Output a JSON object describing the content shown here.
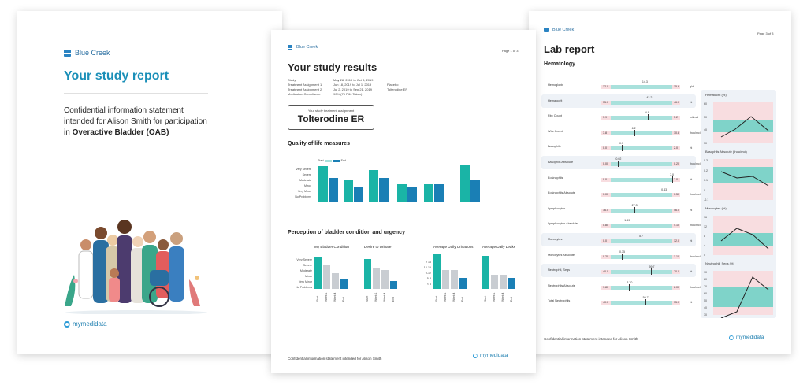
{
  "brand": {
    "name": "Blue Creek",
    "footer_brand": "mymedidata"
  },
  "colors": {
    "teal": "#1ab4a6",
    "blue": "#1a7fb5",
    "grey": "#c9cdd2",
    "normal_range": "#a9e1dc",
    "abnormal_range": "#f8dde0",
    "title_blue": "#1a8fb8"
  },
  "page1": {
    "title": "Your study report",
    "confidential_prefix": "Confidential information statement intended for Alison Smith for participation in",
    "confidential_bold": "Overactive Bladder (OAB)"
  },
  "page2": {
    "page_number": "Page 1 of 3",
    "title": "Your study results",
    "info": [
      {
        "label": "Study",
        "value": "May 28, 2019 to Oct 3, 2019",
        "extra": ""
      },
      {
        "label": "Treatment Assignment 1",
        "value": "Jun 18, 2019 to Jul 1, 2019",
        "extra": "Placebo"
      },
      {
        "label": "Treatment Assignment 2",
        "value": "Jul 2, 2019 to Sep 21, 2019",
        "extra": "Tolterodine ER"
      },
      {
        "label": "Medication Compliance",
        "value": "90% (75 Pills Taken)",
        "extra": ""
      }
    ],
    "assignment_caption": "Your study treatment assignment",
    "assignment_value": "Tolterodine ER",
    "qol": {
      "title": "Quality of life measures",
      "legend_start": "Start",
      "legend_end": "End",
      "levels": [
        "Very Severe",
        "Severe",
        "Moderate",
        "Minor",
        "Very Minor",
        "No Problems"
      ]
    },
    "perception": {
      "title": "Perception of bladder condition and urgency",
      "severity_levels": [
        "Very Severe",
        "Severe",
        "Moderate",
        "Minor",
        "Very Minor",
        "No Problems"
      ],
      "count_levels": [
        "≥ 15",
        "13-15",
        "9-12",
        "5-8",
        "< 5"
      ],
      "charts": [
        {
          "title": "My Bladder Condition",
          "weeks": [
            "Start",
            "Week 1",
            "Week 4",
            "End"
          ]
        },
        {
          "title": "Desire to Urinate",
          "weeks": [
            "Start",
            "Week 1",
            "Week 4",
            "End"
          ]
        },
        {
          "title": "Average Daily Urinations",
          "weeks": [
            "Start",
            "Week 1",
            "Week 4",
            "End"
          ]
        },
        {
          "title": "Average Daily Leaks",
          "weeks": [
            "Start",
            "Week 1",
            "Week 4",
            "End"
          ]
        }
      ]
    },
    "footer": "Confidential information statement intended for Alison Smith"
  },
  "page3": {
    "page_number": "Page 3 of 3",
    "title": "Lab report",
    "section": "Hematology",
    "rows": [
      {
        "name": "Hemoglobin",
        "low": "12.0",
        "high": "15.6",
        "value": "14.3",
        "unit": "g/dl"
      },
      {
        "name": "Hematocrit",
        "low": "35.0",
        "high": "46.0",
        "value": "42.2",
        "unit": "%"
      },
      {
        "name": "Rbc Count",
        "low": "3.9",
        "high": "5.2",
        "value": "4.9",
        "unit": "mil/mcl"
      },
      {
        "name": "Wbc Count",
        "low": "3.8",
        "high": "10.8",
        "value": "6.2",
        "unit": "thou/mcl"
      },
      {
        "name": "Basophils",
        "low": "0.0",
        "high": "2.0",
        "value": "0.3",
        "unit": "%"
      },
      {
        "name": "Basophils Absolute",
        "low": "0.00",
        "high": "0.20",
        "value": "0.02",
        "unit": "thou/mcl"
      },
      {
        "name": "Eosinophils",
        "low": "0.0",
        "high": "7.0",
        "value": "7.0",
        "unit": "%"
      },
      {
        "name": "Eosinophils Absolute",
        "low": "0.00",
        "high": "0.50",
        "value": "0.43",
        "unit": "thou/mcl"
      },
      {
        "name": "Lymphocytes",
        "low": "16.0",
        "high": "46.0",
        "value": "27.3",
        "unit": "%"
      },
      {
        "name": "Lymphocytes Absolute",
        "low": "0.85",
        "high": "4.10",
        "value": "1.69",
        "unit": "thou/mcl"
      },
      {
        "name": "Monocytes",
        "low": "0.0",
        "high": "12.0",
        "value": "5.7",
        "unit": "%"
      },
      {
        "name": "Monocytes Absolute",
        "low": "0.20",
        "high": "1.10",
        "value": "0.35",
        "unit": "thou/mcl"
      },
      {
        "name": "Neutrophil, Segs",
        "low": "40.0",
        "high": "70.0",
        "value": "59.7",
        "unit": "%"
      },
      {
        "name": "Neutrophils Absolute",
        "low": "1.80",
        "high": "8.00",
        "value": "3.70",
        "unit": "thou/mcl"
      },
      {
        "name": "Total Neutrophils",
        "low": "40.0",
        "high": "75.0",
        "value": "59.7",
        "unit": "%"
      }
    ],
    "mini_charts": [
      {
        "title": "Hematocrit (%)",
        "ticks": [
          "60",
          "50",
          "40",
          "30"
        ]
      },
      {
        "title": "Basophils Absolute (thou/mcl)",
        "ticks": [
          "0.3",
          "0.2",
          "0.1",
          "0",
          "-0.1"
        ]
      },
      {
        "title": "Monocytes (%)",
        "ticks": [
          "16",
          "12",
          "8",
          "4",
          "0"
        ]
      },
      {
        "title": "Neutrophil, Segs (%)",
        "ticks": [
          "90",
          "80",
          "70",
          "60",
          "50",
          "40",
          "30"
        ]
      }
    ],
    "footer": "Confidential information statement intended for Alison Smith"
  }
}
